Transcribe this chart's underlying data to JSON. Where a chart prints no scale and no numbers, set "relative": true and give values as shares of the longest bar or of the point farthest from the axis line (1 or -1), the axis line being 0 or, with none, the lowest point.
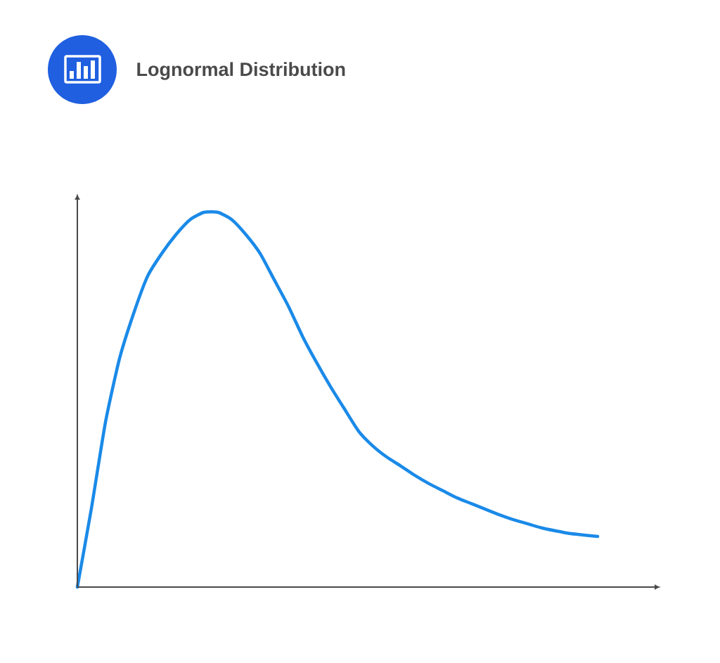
{
  "chart_data": {
    "type": "line",
    "title": "Lognormal Distribution",
    "relative": true,
    "color": "#1a8ae8",
    "categories": [
      null,
      null,
      null,
      null,
      null,
      null,
      null,
      null,
      null,
      null,
      null,
      null,
      null,
      null,
      null,
      null,
      null,
      null,
      null,
      null,
      null,
      null,
      null,
      null,
      null,
      null,
      null,
      null,
      null,
      null,
      null,
      null,
      null,
      null,
      null,
      null,
      null,
      null
    ],
    "values": [
      0,
      0.21,
      0.44,
      0.61,
      0.73,
      0.83,
      0.89,
      0.94,
      0.98,
      1.0,
      1.0,
      0.98,
      0.94,
      0.89,
      0.82,
      0.75,
      0.67,
      0.6,
      0.535,
      0.475,
      0.416,
      0.377,
      0.347,
      0.323,
      0.298,
      0.276,
      0.257,
      0.238,
      0.223,
      0.208,
      0.193,
      0.18,
      0.169,
      0.158,
      0.15,
      0.143,
      0.139,
      0.135
    ]
  }
}
